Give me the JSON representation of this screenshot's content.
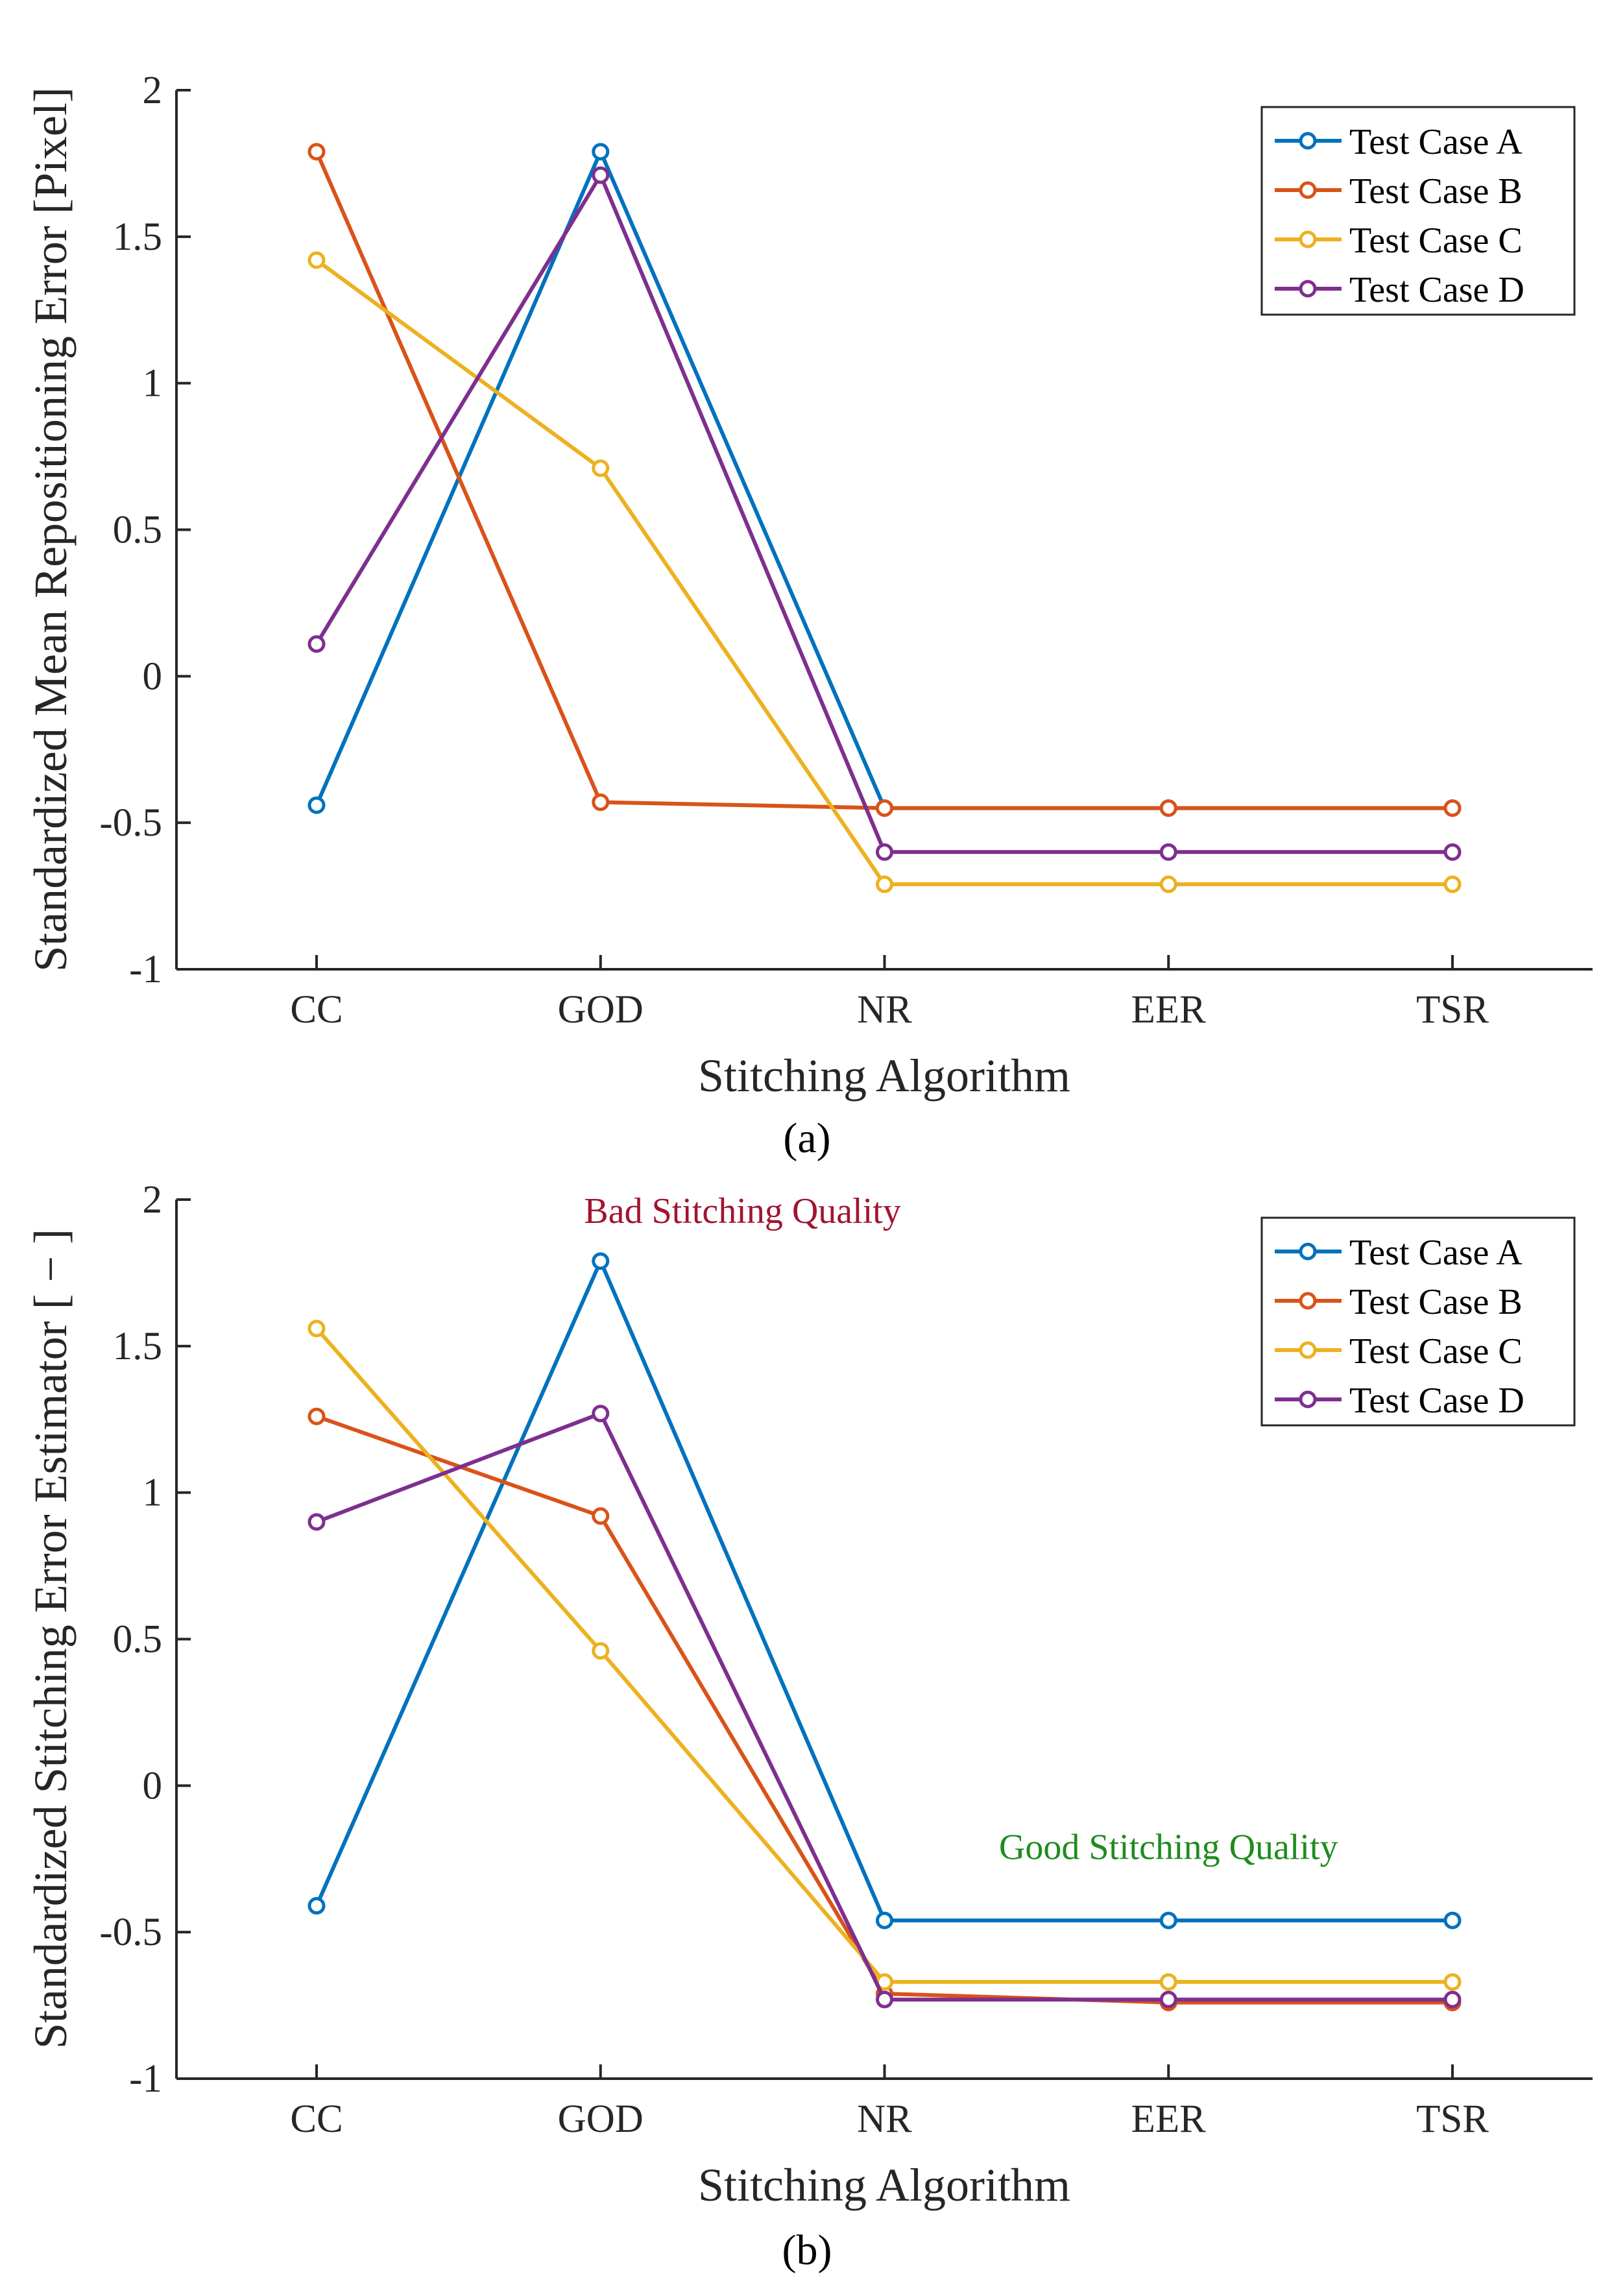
{
  "panel_labels": [
    "(a)",
    "(b)"
  ],
  "colors": {
    "Test Case A": "#0072BD",
    "Test Case B": "#D95319",
    "Test Case C": "#EDB120",
    "Test Case D": "#7E2F8E",
    "bad_annotation": "#A2142F",
    "good_annotation": "#1E8C1E"
  },
  "chart_data": [
    {
      "type": "line",
      "title": "",
      "xlabel": "Stitching Algorithm",
      "ylabel": "Standardized Mean Repositioning Error [Pixel]",
      "categories": [
        "CC",
        "GOD",
        "NR",
        "EER",
        "TSR"
      ],
      "ylim": [
        -1,
        2
      ],
      "yticks": [
        -1,
        -0.5,
        0,
        0.5,
        1,
        1.5,
        2
      ],
      "ytick_labels": [
        "-1",
        "-0.5",
        "0",
        "0.5",
        "1",
        "1.5",
        "2"
      ],
      "legend_position": "top-right",
      "series": [
        {
          "name": "Test Case A",
          "values": [
            -0.44,
            1.79,
            -0.45,
            -0.45,
            -0.45
          ]
        },
        {
          "name": "Test Case B",
          "values": [
            1.79,
            -0.43,
            -0.45,
            -0.45,
            -0.45
          ]
        },
        {
          "name": "Test Case C",
          "values": [
            1.42,
            0.71,
            -0.71,
            -0.71,
            -0.71
          ]
        },
        {
          "name": "Test Case D",
          "values": [
            0.11,
            1.71,
            -0.6,
            -0.6,
            -0.6
          ]
        }
      ],
      "annotations": []
    },
    {
      "type": "line",
      "title": "",
      "xlabel": "Stitching Algorithm",
      "ylabel": "Standardized Stitching Error Estimator [ − ]",
      "categories": [
        "CC",
        "GOD",
        "NR",
        "EER",
        "TSR"
      ],
      "ylim": [
        -1,
        2
      ],
      "yticks": [
        -1,
        -0.5,
        0,
        0.5,
        1,
        1.5,
        2
      ],
      "ytick_labels": [
        "-1",
        "-0.5",
        "0",
        "0.5",
        "1",
        "1.5",
        "2"
      ],
      "legend_position": "top-right",
      "series": [
        {
          "name": "Test Case A",
          "values": [
            -0.41,
            1.79,
            -0.46,
            -0.46,
            -0.46
          ]
        },
        {
          "name": "Test Case B",
          "values": [
            1.26,
            0.92,
            -0.71,
            -0.74,
            -0.74
          ]
        },
        {
          "name": "Test Case C",
          "values": [
            1.56,
            0.46,
            -0.67,
            -0.67,
            -0.67
          ]
        },
        {
          "name": "Test Case D",
          "values": [
            0.9,
            1.27,
            -0.73,
            -0.73,
            -0.73
          ]
        }
      ],
      "annotations": [
        {
          "text": "Bad Stitching Quality",
          "x": 1.5,
          "y": 1.92,
          "color": "#A2142F"
        },
        {
          "text": "Good Stitching Quality",
          "x": 3.0,
          "y": -0.25,
          "color": "#1E8C1E"
        }
      ]
    }
  ]
}
